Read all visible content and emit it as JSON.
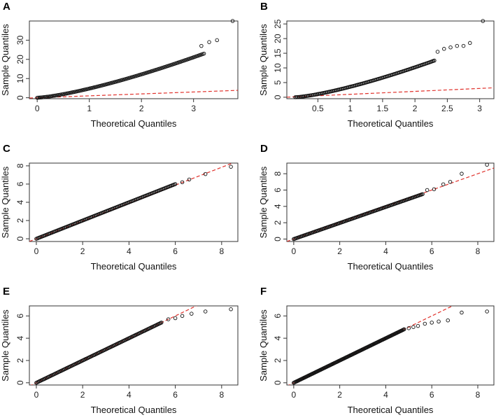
{
  "chart_data": [
    {
      "type": "scatter",
      "panel": "A",
      "xlabel": "Theoretical Quantiles",
      "ylabel": "Sample Quantiles",
      "xlim": [
        -0.15,
        3.85
      ],
      "ylim": [
        -0.5,
        40
      ],
      "xticks": [
        0,
        1,
        2,
        3
      ],
      "yticks": [
        0,
        10,
        20,
        30
      ],
      "reference_line": {
        "intercept": 0,
        "slope": 1
      },
      "points": {
        "x_end": 3.2,
        "y_end": 23,
        "curve_power": 1.35,
        "n": 140
      },
      "outliers": [
        [
          3.15,
          27
        ],
        [
          3.3,
          29
        ],
        [
          3.45,
          30
        ],
        [
          3.75,
          40
        ]
      ]
    },
    {
      "type": "scatter",
      "panel": "B",
      "xlabel": "Theoretical Quantiles",
      "ylabel": "Sample Quantiles",
      "xlim": [
        0.02,
        3.22
      ],
      "ylim": [
        -0.5,
        26
      ],
      "xticks": [
        0.5,
        1.0,
        1.5,
        2.0,
        2.5,
        3.0
      ],
      "yticks": [
        0,
        5,
        10,
        15,
        20,
        25
      ],
      "reference_line": {
        "intercept": 0,
        "slope": 1
      },
      "points": {
        "x_start": 0.15,
        "x_end": 2.3,
        "y_end": 12.5,
        "curve_power": 1.35,
        "n": 140
      },
      "outliers": [
        [
          2.35,
          15.5
        ],
        [
          2.45,
          16.5
        ],
        [
          2.55,
          17
        ],
        [
          2.65,
          17.5
        ],
        [
          2.75,
          17.5
        ],
        [
          2.85,
          18.5
        ],
        [
          3.05,
          26
        ]
      ]
    },
    {
      "type": "scatter",
      "panel": "C",
      "xlabel": "Theoretical Quantiles",
      "ylabel": "Sample Quantiles",
      "xlim": [
        -0.3,
        8.7
      ],
      "ylim": [
        -0.3,
        8.3
      ],
      "xticks": [
        0,
        2,
        4,
        6,
        8
      ],
      "yticks": [
        0,
        2,
        4,
        6,
        8
      ],
      "reference_line": {
        "intercept": 0,
        "slope": 0.98
      },
      "points": {
        "x_end": 6.0,
        "y_end": 6.0,
        "curve_power": 1.0,
        "n": 140
      },
      "outliers": [
        [
          6.3,
          6.2
        ],
        [
          6.6,
          6.5
        ],
        [
          7.3,
          7.1
        ],
        [
          8.4,
          7.9
        ]
      ]
    },
    {
      "type": "scatter",
      "panel": "D",
      "xlabel": "Theoretical Quantiles",
      "ylabel": "Sample Quantiles",
      "xlim": [
        -0.3,
        8.7
      ],
      "ylim": [
        -0.3,
        9.3
      ],
      "xticks": [
        0,
        2,
        4,
        6,
        8
      ],
      "yticks": [
        0,
        2,
        4,
        6,
        8
      ],
      "reference_line": {
        "intercept": 0,
        "slope": 1.0
      },
      "points": {
        "x_end": 5.6,
        "y_end": 5.5,
        "curve_power": 1.0,
        "n": 140
      },
      "outliers": [
        [
          5.8,
          6.0
        ],
        [
          6.1,
          6.1
        ],
        [
          6.5,
          6.7
        ],
        [
          6.8,
          7.0
        ],
        [
          7.3,
          8.0
        ],
        [
          8.4,
          9.1
        ]
      ]
    },
    {
      "type": "scatter",
      "panel": "E",
      "xlabel": "Theoretical Quantiles",
      "ylabel": "Sample Quantiles",
      "xlim": [
        -0.3,
        8.7
      ],
      "ylim": [
        -0.2,
        6.9
      ],
      "xticks": [
        0,
        2,
        4,
        6,
        8
      ],
      "yticks": [
        0,
        2,
        4,
        6
      ],
      "reference_line": {
        "intercept": 0,
        "slope": 1.0
      },
      "points": {
        "x_end": 5.4,
        "y_end": 5.4,
        "curve_power": 1.0,
        "n": 140
      },
      "outliers": [
        [
          5.7,
          5.7
        ],
        [
          6.0,
          5.8
        ],
        [
          6.3,
          6.0
        ],
        [
          6.7,
          6.2
        ],
        [
          7.3,
          6.4
        ],
        [
          8.4,
          6.6
        ]
      ]
    },
    {
      "type": "scatter",
      "panel": "F",
      "xlabel": "Theoretical Quantiles",
      "ylabel": "Sample Quantiles",
      "xlim": [
        -0.3,
        8.7
      ],
      "ylim": [
        -0.2,
        6.9
      ],
      "xticks": [
        0,
        2,
        4,
        6,
        8
      ],
      "yticks": [
        0,
        2,
        4,
        6
      ],
      "reference_line": {
        "intercept": 0,
        "slope": 1.0
      },
      "points": {
        "x_end": 4.8,
        "y_end": 4.8,
        "curve_power": 1.0,
        "n": 140
      },
      "outliers": [
        [
          5.0,
          4.9
        ],
        [
          5.2,
          5.0
        ],
        [
          5.4,
          5.1
        ],
        [
          5.7,
          5.3
        ],
        [
          6.0,
          5.4
        ],
        [
          6.3,
          5.5
        ],
        [
          6.7,
          5.6
        ],
        [
          7.3,
          6.3
        ],
        [
          8.4,
          6.4
        ]
      ]
    }
  ],
  "colors": {
    "points": "#111111",
    "reference_line": "#e0312b",
    "axis": "#333333"
  }
}
